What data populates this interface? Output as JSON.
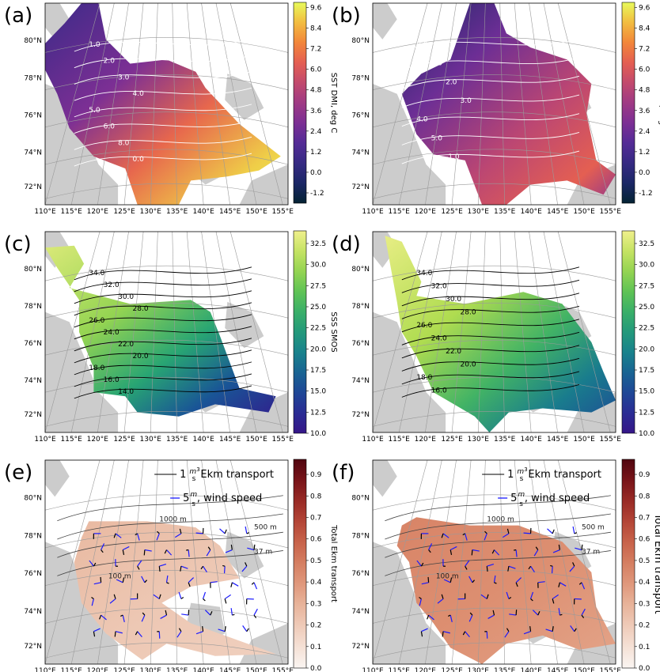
{
  "chart_data": [
    {
      "type": "heatmap",
      "panel_label": "(a)",
      "variable": "SST DMI, deg C",
      "colormap": "thermal",
      "colorbar_ticks": [
        "9.6",
        "8.4",
        "7.2",
        "6.0",
        "4.8",
        "3.6",
        "2.4",
        "1.2",
        "0.0",
        "-1.2"
      ],
      "vmin": -1.8,
      "vmax": 9.9,
      "lat_ticks": [
        "80°N",
        "78°N",
        "76°N",
        "74°N",
        "72°N"
      ],
      "lon_ticks": [
        "110°E",
        "115°E",
        "120°E",
        "125°E",
        "130°E",
        "135°E",
        "140°E",
        "145°E",
        "150°E",
        "155°E"
      ],
      "contour_labels": [
        "1.0",
        "2.0",
        "3.0",
        "4.0",
        "5.0",
        "6.0",
        "8.0",
        "0.0"
      ],
      "contour_color": "#ffffff"
    },
    {
      "type": "heatmap",
      "panel_label": "(b)",
      "variable": "SST DMI, deg C",
      "colormap": "thermal",
      "colorbar_ticks": [
        "9.6",
        "8.4",
        "7.2",
        "6.0",
        "4.8",
        "3.6",
        "2.4",
        "1.2",
        "0.0",
        "-1.2"
      ],
      "vmin": -1.8,
      "vmax": 9.9,
      "lat_ticks": [
        "80°N",
        "78°N",
        "76°N",
        "74°N",
        "72°N"
      ],
      "lon_ticks": [
        "110°E",
        "115°E",
        "120°E",
        "125°E",
        "130°E",
        "135°E",
        "140°E",
        "145°E",
        "150°E",
        "155°E"
      ],
      "contour_labels": [
        "0.0",
        "1.0",
        "2.0",
        "3.0",
        "4.0",
        "5.0",
        "-1.0"
      ],
      "contour_color": "#ffffff"
    },
    {
      "type": "heatmap",
      "panel_label": "(c)",
      "variable": "SSS SMOS",
      "colormap": "viridis",
      "colorbar_ticks": [
        "32.5",
        "30.0",
        "27.5",
        "25.0",
        "22.5",
        "20.0",
        "17.5",
        "15.0",
        "12.5",
        "10.0"
      ],
      "vmin": 10.0,
      "vmax": 34.0,
      "lat_ticks": [
        "80°N",
        "78°N",
        "76°N",
        "74°N",
        "72°N"
      ],
      "lon_ticks": [
        "110°E",
        "115°E",
        "120°E",
        "125°E",
        "130°E",
        "135°E",
        "140°E",
        "145°E",
        "150°E",
        "155°E"
      ],
      "contour_labels": [
        "34.0",
        "32.0",
        "30.0",
        "28.0",
        "26.0",
        "24.0",
        "22.0",
        "20.0",
        "18.0",
        "16.0",
        "14.0"
      ],
      "contour_color": "#000000"
    },
    {
      "type": "heatmap",
      "panel_label": "(d)",
      "variable": "SSS SMOS",
      "colormap": "viridis",
      "colorbar_ticks": [
        "32.5",
        "30.0",
        "27.5",
        "25.0",
        "22.5",
        "20.0",
        "17.5",
        "15.0",
        "12.5",
        "10.0"
      ],
      "vmin": 10.0,
      "vmax": 34.0,
      "lat_ticks": [
        "80°N",
        "78°N",
        "76°N",
        "74°N",
        "72°N"
      ],
      "lon_ticks": [
        "110°E",
        "115°E",
        "120°E",
        "125°E",
        "130°E",
        "135°E",
        "140°E",
        "145°E",
        "150°E",
        "155°E"
      ],
      "contour_labels": [
        "34.0",
        "32.0",
        "30.0",
        "28.0",
        "26.0",
        "24.0",
        "22.0",
        "20.0",
        "18.0",
        "16.0"
      ],
      "contour_color": "#000000"
    },
    {
      "type": "heatmap",
      "panel_label": "(e)",
      "variable": "Total Ekm transport",
      "colormap": "reds",
      "colorbar_ticks": [
        "0.9",
        "0.8",
        "0.7",
        "0.6",
        "0.5",
        "0.4",
        "0.3",
        "0.2",
        "0.1",
        "0.0"
      ],
      "vmin": 0.0,
      "vmax": 0.97,
      "lat_ticks": [
        "80°N",
        "78°N",
        "76°N",
        "74°N",
        "72°N"
      ],
      "lon_ticks": [
        "110°E",
        "115°E",
        "120°E",
        "125°E",
        "130°E",
        "135°E",
        "140°E",
        "145°E",
        "150°E",
        "155°E"
      ],
      "isobath_labels": [
        "1000 m",
        "500 m",
        "37 m",
        "100 m"
      ],
      "legend": [
        "Ekm transport",
        "wind speed"
      ]
    },
    {
      "type": "heatmap",
      "panel_label": "(f)",
      "variable": "Total Ekm transport",
      "colormap": "reds",
      "colorbar_ticks": [
        "0.9",
        "0.8",
        "0.7",
        "0.6",
        "0.5",
        "0.4",
        "0.3",
        "0.2",
        "0.1",
        "0.0"
      ],
      "vmin": 0.0,
      "vmax": 0.97,
      "lat_ticks": [
        "80°N",
        "78°N",
        "76°N",
        "74°N",
        "72°N"
      ],
      "lon_ticks": [
        "110°E",
        "115°E",
        "120°E",
        "125°E",
        "130°E",
        "135°E",
        "140°E",
        "145°E",
        "150°E",
        "155°E"
      ],
      "isobath_labels": [
        "1000 m",
        "500 m",
        "37 m",
        "100 m"
      ],
      "legend": [
        "Ekm transport",
        "wind speed"
      ]
    }
  ],
  "legend_text": {
    "ekm_value": "1",
    "ekm_unit_num": "m",
    "ekm_unit_sup": "3",
    "ekm_unit_den": "s",
    "ekm_label": "Ekm transport",
    "wind_value": "5",
    "wind_unit_num": "m",
    "wind_unit_den": "s",
    "wind_label": ", wind speed"
  },
  "colors": {
    "land": "#cccccc",
    "graticule": "#9a9a9a",
    "frame": "#000000",
    "wind_arrow": "#1a1aff",
    "ekm_arrow": "#000000"
  }
}
